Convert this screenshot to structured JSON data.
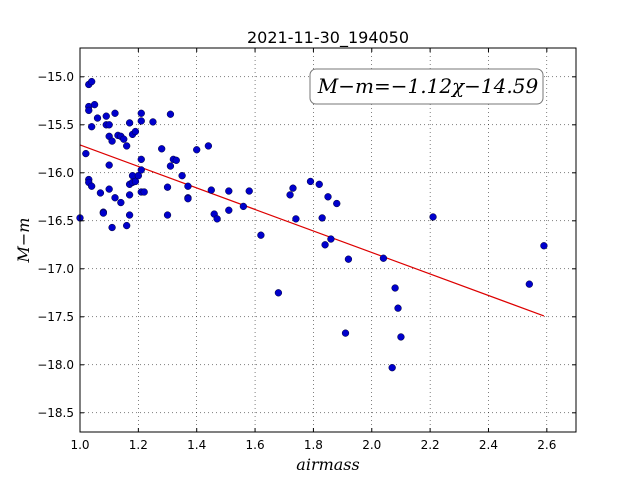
{
  "chart_data": {
    "type": "scatter",
    "title": "2021-11-30_194050",
    "xlabel": "airmass",
    "ylabel": "M−m",
    "annotation": "M−m=−1.12χ−14.59",
    "xlim": [
      1.0,
      2.7
    ],
    "ylim": [
      -18.7,
      -14.7
    ],
    "y_inverted": true,
    "grid": true,
    "x_ticks": [
      1.0,
      1.2,
      1.4,
      1.6,
      1.8,
      2.0,
      2.2,
      2.4,
      2.6
    ],
    "x_tick_labels": [
      "1.0",
      "1.2",
      "1.4",
      "1.6",
      "1.8",
      "2.0",
      "2.2",
      "2.4",
      "2.6"
    ],
    "y_ticks": [
      -15.0,
      -15.5,
      -16.0,
      -16.5,
      -17.0,
      -17.5,
      -18.0,
      -18.5
    ],
    "y_tick_labels": [
      "−15.0",
      "−15.5",
      "−16.0",
      "−16.5",
      "−17.0",
      "−17.5",
      "−18.0",
      "−18.5"
    ],
    "point_color": "#0000cc",
    "fit_color": "#dd0000",
    "fit": {
      "slope": -1.12,
      "intercept": -14.59,
      "x_range": [
        1.0,
        2.59
      ]
    },
    "points": [
      [
        1.0,
        -16.47
      ],
      [
        1.02,
        -15.8
      ],
      [
        1.03,
        -15.31
      ],
      [
        1.03,
        -15.35
      ],
      [
        1.03,
        -15.08
      ],
      [
        1.04,
        -15.05
      ],
      [
        1.05,
        -15.29
      ],
      [
        1.04,
        -15.52
      ],
      [
        1.06,
        -15.43
      ],
      [
        1.03,
        -16.07
      ],
      [
        1.03,
        -16.1
      ],
      [
        1.04,
        -16.14
      ],
      [
        1.07,
        -16.21
      ],
      [
        1.08,
        -16.41
      ],
      [
        1.08,
        -16.42
      ],
      [
        1.09,
        -15.41
      ],
      [
        1.09,
        -15.5
      ],
      [
        1.1,
        -15.5
      ],
      [
        1.1,
        -15.62
      ],
      [
        1.11,
        -15.67
      ],
      [
        1.1,
        -15.92
      ],
      [
        1.1,
        -16.17
      ],
      [
        1.12,
        -16.26
      ],
      [
        1.11,
        -16.57
      ],
      [
        1.12,
        -15.38
      ],
      [
        1.13,
        -15.61
      ],
      [
        1.14,
        -15.62
      ],
      [
        1.15,
        -15.65
      ],
      [
        1.14,
        -16.31
      ],
      [
        1.16,
        -15.72
      ],
      [
        1.17,
        -15.48
      ],
      [
        1.17,
        -16.12
      ],
      [
        1.17,
        -16.23
      ],
      [
        1.17,
        -16.44
      ],
      [
        1.16,
        -16.55
      ],
      [
        1.18,
        -15.6
      ],
      [
        1.19,
        -15.57
      ],
      [
        1.18,
        -16.03
      ],
      [
        1.18,
        -16.1
      ],
      [
        1.19,
        -16.09
      ],
      [
        1.2,
        -16.03
      ],
      [
        1.21,
        -15.38
      ],
      [
        1.21,
        -15.46
      ],
      [
        1.21,
        -15.86
      ],
      [
        1.21,
        -15.97
      ],
      [
        1.21,
        -16.2
      ],
      [
        1.22,
        -16.2
      ],
      [
        1.25,
        -15.47
      ],
      [
        1.28,
        -15.75
      ],
      [
        1.3,
        -16.15
      ],
      [
        1.3,
        -16.44
      ],
      [
        1.31,
        -15.39
      ],
      [
        1.31,
        -15.93
      ],
      [
        1.32,
        -15.86
      ],
      [
        1.33,
        -15.87
      ],
      [
        1.35,
        -16.03
      ],
      [
        1.37,
        -16.14
      ],
      [
        1.37,
        -16.26
      ],
      [
        1.37,
        -16.27
      ],
      [
        1.4,
        -15.76
      ],
      [
        1.44,
        -15.72
      ],
      [
        1.45,
        -16.18
      ],
      [
        1.46,
        -16.43
      ],
      [
        1.47,
        -16.48
      ],
      [
        1.51,
        -16.19
      ],
      [
        1.51,
        -16.39
      ],
      [
        1.56,
        -16.35
      ],
      [
        1.58,
        -16.19
      ],
      [
        1.62,
        -16.65
      ],
      [
        1.68,
        -17.25
      ],
      [
        1.72,
        -16.23
      ],
      [
        1.73,
        -16.16
      ],
      [
        1.74,
        -16.48
      ],
      [
        1.79,
        -16.09
      ],
      [
        1.82,
        -16.12
      ],
      [
        1.83,
        -16.47
      ],
      [
        1.84,
        -16.75
      ],
      [
        1.85,
        -16.25
      ],
      [
        1.86,
        -16.69
      ],
      [
        1.88,
        -16.32
      ],
      [
        1.91,
        -17.67
      ],
      [
        1.92,
        -16.9
      ],
      [
        2.04,
        -16.89
      ],
      [
        2.07,
        -18.03
      ],
      [
        2.08,
        -17.2
      ],
      [
        2.09,
        -17.41
      ],
      [
        2.1,
        -17.71
      ],
      [
        2.21,
        -16.46
      ],
      [
        2.54,
        -17.16
      ],
      [
        2.59,
        -16.76
      ]
    ]
  }
}
